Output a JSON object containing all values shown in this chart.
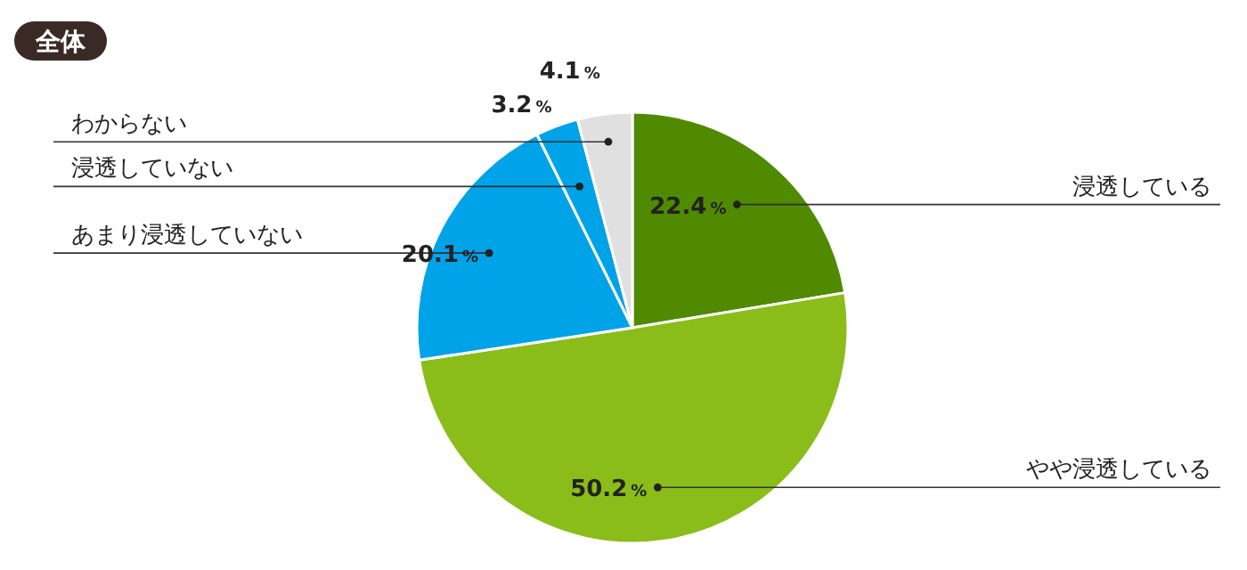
{
  "chart_data": {
    "type": "pie",
    "title": "全体",
    "categories": [
      "浸透している",
      "やや浸透している",
      "あまり浸透していない",
      "浸透していない",
      "わからない"
    ],
    "values": [
      22.4,
      50.2,
      20.1,
      3.2,
      4.1
    ],
    "colors": [
      "#4f8a00",
      "#8abd19",
      "#00a2e8",
      "#00a2e8",
      "#e0e0e0"
    ],
    "value_labels": [
      "22.4%",
      "50.2%",
      "20.1%",
      "3.2%",
      "4.1%"
    ]
  }
}
